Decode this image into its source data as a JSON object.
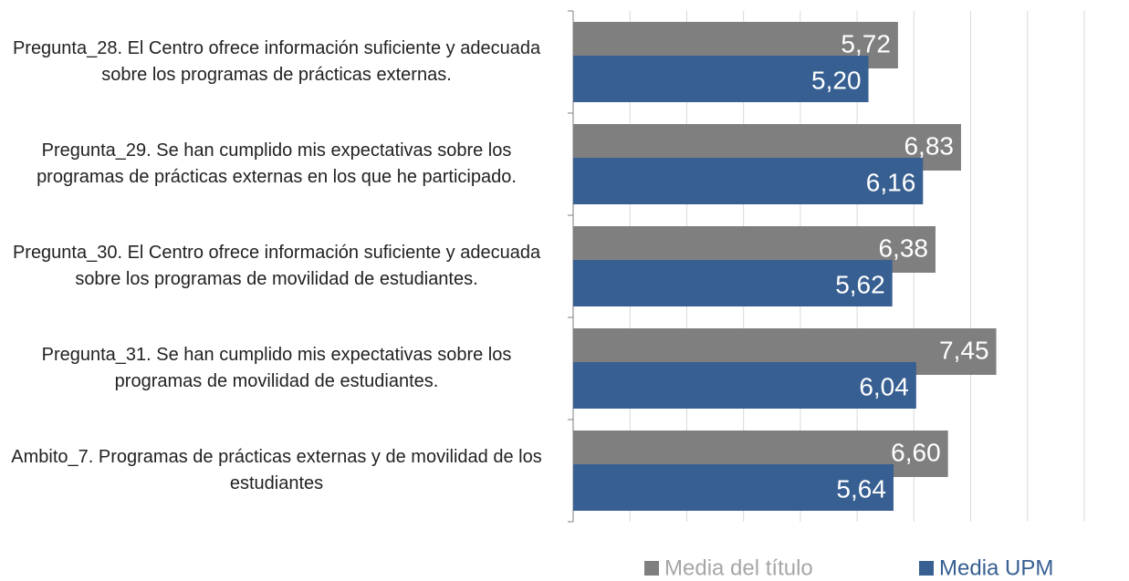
{
  "chart_data": {
    "type": "bar",
    "orientation": "horizontal",
    "categories": [
      "Pregunta_28. El Centro ofrece información suficiente y adecuada sobre los programas de prácticas externas.",
      "Pregunta_29. Se han cumplido mis expectativas sobre los programas  de prácticas externas en los que he participado.",
      "Pregunta_30. El Centro ofrece información suficiente y adecuada sobre los programas de movilidad de estudiantes.",
      "Pregunta_31. Se han cumplido mis expectativas sobre los programas de movilidad de estudiantes.",
      "Ambito_7. Programas de prácticas externas y de movilidad de los estudiantes"
    ],
    "series": [
      {
        "name": "Media del título",
        "color": "#7f7f7f",
        "values": [
          5.72,
          6.83,
          6.38,
          7.45,
          6.6
        ],
        "value_labels": [
          "5,72",
          "6,83",
          "6,38",
          "7,45",
          "6,60"
        ]
      },
      {
        "name": "Media UPM",
        "color": "#375f92",
        "values": [
          5.2,
          6.16,
          5.62,
          6.04,
          5.64
        ],
        "value_labels": [
          "5,20",
          "6,16",
          "5,62",
          "6,04",
          "5,64"
        ]
      }
    ],
    "xlim": [
      0,
      9
    ],
    "xticks": [
      0,
      1,
      2,
      3,
      4,
      5,
      6,
      7,
      8,
      9
    ],
    "grid": true,
    "legend": "bottom"
  }
}
